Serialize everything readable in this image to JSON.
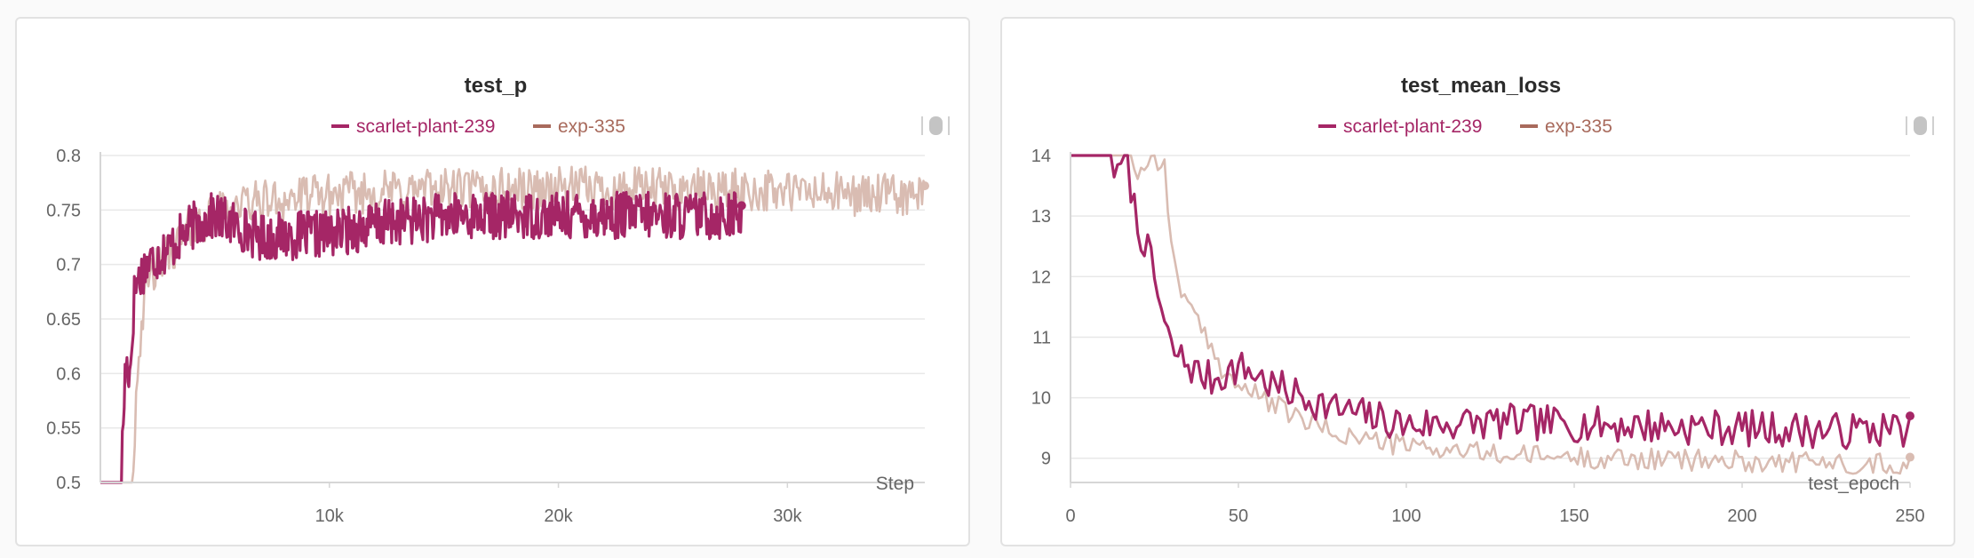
{
  "colors": {
    "primary": "#a52666",
    "secondary": "#d9bcb2",
    "legend_secondary": "#a86a5c",
    "grid": "#e8e8e8",
    "axis": "#d6d6d6"
  },
  "charts": [
    {
      "chart_data": {
        "type": "line",
        "title": "test_p",
        "xlabel": "Step",
        "ylabel": "",
        "xlim": [
          0,
          36000
        ],
        "ylim": [
          0.5,
          0.8
        ],
        "x_ticks": [
          10000,
          20000,
          30000
        ],
        "x_tick_labels": [
          "10k",
          "20k",
          "30k"
        ],
        "y_ticks": [
          0.5,
          0.55,
          0.6,
          0.65,
          0.7,
          0.75,
          0.8
        ],
        "y_tick_labels": [
          "0.5",
          "0.55",
          "0.6",
          "0.65",
          "0.7",
          "0.75",
          "0.8"
        ],
        "grid": true,
        "legend_position": "top-center",
        "series": [
          {
            "name": "scarlet-plant-239",
            "role": "primary",
            "x_range": [
              0,
              28000
            ],
            "keypoints": [
              [
                0,
                0.5
              ],
              [
                900,
                0.5
              ],
              [
                1100,
                0.61
              ],
              [
                1300,
                0.6
              ],
              [
                1500,
                0.68
              ],
              [
                2000,
                0.7
              ],
              [
                3000,
                0.715
              ],
              [
                4000,
                0.735
              ],
              [
                5000,
                0.745
              ],
              [
                7000,
                0.725
              ],
              [
                10000,
                0.728
              ],
              [
                13000,
                0.74
              ],
              [
                16000,
                0.745
              ],
              [
                20000,
                0.745
              ],
              [
                24000,
                0.745
              ],
              [
                28000,
                0.745
              ]
            ],
            "noise": 0.022,
            "step": 40,
            "seed": 17
          },
          {
            "name": "exp-335",
            "role": "secondary",
            "x_range": [
              0,
              36000
            ],
            "keypoints": [
              [
                0,
                0.5
              ],
              [
                1400,
                0.5
              ],
              [
                1600,
                0.6
              ],
              [
                1800,
                0.65
              ],
              [
                2200,
                0.69
              ],
              [
                3000,
                0.71
              ],
              [
                4000,
                0.735
              ],
              [
                6000,
                0.755
              ],
              [
                9000,
                0.762
              ],
              [
                13000,
                0.768
              ],
              [
                20000,
                0.77
              ],
              [
                28000,
                0.768
              ],
              [
                36000,
                0.762
              ]
            ],
            "noise": 0.02,
            "step": 60,
            "seed": 42
          }
        ]
      }
    },
    {
      "chart_data": {
        "type": "line",
        "title": "test_mean_loss",
        "xlabel": "test_epoch",
        "ylabel": "",
        "xlim": [
          0,
          250
        ],
        "ylim": [
          8.6,
          14
        ],
        "x_ticks": [
          0,
          50,
          100,
          150,
          200,
          250
        ],
        "x_tick_labels": [
          "0",
          "50",
          "100",
          "150",
          "200",
          "250"
        ],
        "y_ticks": [
          9,
          10,
          11,
          12,
          13,
          14
        ],
        "y_tick_labels": [
          "9",
          "10",
          "11",
          "12",
          "13",
          "14"
        ],
        "grid": true,
        "legend_position": "top-center",
        "series": [
          {
            "name": "scarlet-plant-239",
            "role": "primary",
            "x_range": [
              0,
              250
            ],
            "keypoints": [
              [
                0,
                14
              ],
              [
                12,
                14
              ],
              [
                14,
                13.6
              ],
              [
                16,
                14
              ],
              [
                18,
                13.5
              ],
              [
                20,
                12.8
              ],
              [
                22,
                12.6
              ],
              [
                24,
                12.2
              ],
              [
                26,
                11.7
              ],
              [
                28,
                11.2
              ],
              [
                30,
                10.8
              ],
              [
                34,
                10.6
              ],
              [
                38,
                10.4
              ],
              [
                42,
                10.3
              ],
              [
                50,
                10.5
              ],
              [
                55,
                10.4
              ],
              [
                60,
                10.2
              ],
              [
                70,
                10.0
              ],
              [
                80,
                9.8
              ],
              [
                100,
                9.55
              ],
              [
                130,
                9.6
              ],
              [
                160,
                9.55
              ],
              [
                200,
                9.5
              ],
              [
                230,
                9.45
              ],
              [
                250,
                9.5
              ]
            ],
            "noise": 0.3,
            "step": 1,
            "seed": 7
          },
          {
            "name": "exp-335",
            "role": "secondary",
            "x_range": [
              0,
              250
            ],
            "keypoints": [
              [
                0,
                14
              ],
              [
                18,
                14
              ],
              [
                20,
                13.7
              ],
              [
                25,
                14
              ],
              [
                28,
                13.8
              ],
              [
                30,
                12.5
              ],
              [
                33,
                11.8
              ],
              [
                36,
                11.4
              ],
              [
                40,
                11.0
              ],
              [
                45,
                10.5
              ],
              [
                50,
                10.2
              ],
              [
                60,
                9.9
              ],
              [
                70,
                9.6
              ],
              [
                80,
                9.4
              ],
              [
                100,
                9.2
              ],
              [
                130,
                9.05
              ],
              [
                160,
                9.0
              ],
              [
                200,
                8.95
              ],
              [
                250,
                8.9
              ]
            ],
            "noise": 0.18,
            "step": 1,
            "seed": 99
          }
        ]
      }
    }
  ]
}
